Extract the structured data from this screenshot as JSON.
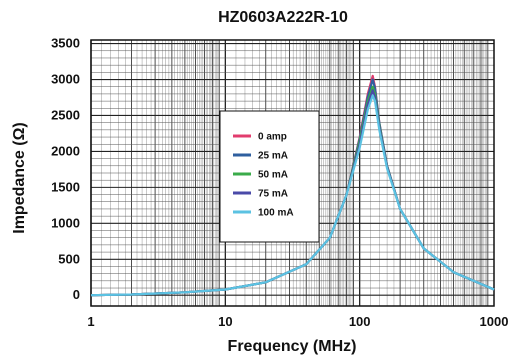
{
  "chart_data": {
    "type": "line",
    "title": "HZ0603A222R-10",
    "xlabel": "Frequency (MHz)",
    "ylabel": "Impedance (Ω)",
    "x_scale": "log",
    "xlim": [
      1,
      1000
    ],
    "ylim": [
      -150,
      3550
    ],
    "x_ticks": [
      "1",
      "10",
      "100",
      "1000"
    ],
    "y_ticks": [
      "0",
      "500",
      "1000",
      "1500",
      "2000",
      "2500",
      "3000",
      "3500"
    ],
    "grid": true,
    "legend_position": "center-left",
    "series": [
      {
        "name": "0 amp",
        "color": "#e23c6e",
        "x": [
          1,
          2,
          5,
          10,
          20,
          40,
          60,
          80,
          100,
          115,
          125,
          130,
          140,
          160,
          200,
          300,
          500,
          1000
        ],
        "y": [
          0,
          10,
          40,
          80,
          180,
          430,
          800,
          1400,
          2200,
          2800,
          3050,
          2900,
          2400,
          1800,
          1200,
          650,
          320,
          80
        ]
      },
      {
        "name": "25 mA",
        "color": "#2f5f9f",
        "x": [
          1,
          2,
          5,
          10,
          20,
          40,
          60,
          80,
          100,
          115,
          125,
          130,
          140,
          160,
          200,
          300,
          500,
          1000
        ],
        "y": [
          0,
          10,
          40,
          80,
          180,
          430,
          800,
          1400,
          2180,
          2760,
          3000,
          2880,
          2400,
          1800,
          1200,
          650,
          320,
          80
        ]
      },
      {
        "name": "50 mA",
        "color": "#3aab4a",
        "x": [
          1,
          2,
          5,
          10,
          20,
          40,
          60,
          80,
          100,
          115,
          125,
          130,
          140,
          160,
          200,
          300,
          500,
          1000
        ],
        "y": [
          0,
          10,
          40,
          80,
          180,
          430,
          800,
          1400,
          2150,
          2700,
          2900,
          2800,
          2370,
          1790,
          1200,
          650,
          320,
          80
        ]
      },
      {
        "name": "75 mA",
        "color": "#4a4aa8",
        "x": [
          1,
          2,
          5,
          10,
          20,
          40,
          60,
          80,
          100,
          115,
          125,
          130,
          140,
          160,
          200,
          300,
          500,
          1000
        ],
        "y": [
          0,
          10,
          40,
          80,
          180,
          430,
          800,
          1400,
          2100,
          2650,
          2850,
          2750,
          2340,
          1780,
          1200,
          650,
          320,
          80
        ]
      },
      {
        "name": "100 mA",
        "color": "#5bc2e2",
        "x": [
          1,
          2,
          5,
          10,
          20,
          40,
          60,
          80,
          100,
          115,
          125,
          130,
          140,
          160,
          200,
          300,
          500,
          1000
        ],
        "y": [
          0,
          10,
          40,
          80,
          180,
          430,
          800,
          1400,
          2050,
          2580,
          2780,
          2700,
          2300,
          1760,
          1200,
          650,
          320,
          80
        ]
      }
    ]
  }
}
